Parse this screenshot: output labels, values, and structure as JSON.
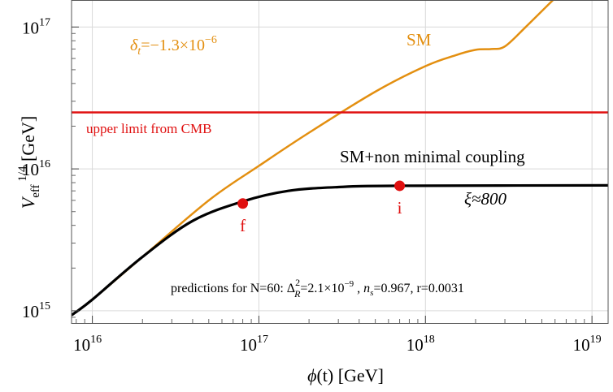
{
  "chart_data": {
    "type": "line",
    "xlabel": "ϕ(t) [GeV]",
    "ylabel": "V_eff^1/4 [GeV]",
    "xscale": "log",
    "yscale": "log",
    "xlim": [
      7500000000000000.0,
      1.25e+19
    ],
    "ylim": [
      820000000000000.0,
      1.55e+17
    ],
    "grid": true,
    "x_ticks": [
      {
        "value": 1e+16,
        "label": "10",
        "exp": "16"
      },
      {
        "value": 1e+17,
        "label": "10",
        "exp": "17"
      },
      {
        "value": 1e+18,
        "label": "10",
        "exp": "18"
      },
      {
        "value": 1e+19,
        "label": "10",
        "exp": "19"
      }
    ],
    "y_ticks": [
      {
        "value": 1000000000000000.0,
        "label": "10",
        "exp": "15"
      },
      {
        "value": 1e+16,
        "label": "10",
        "exp": "16"
      },
      {
        "value": 1e+17,
        "label": "10",
        "exp": "17"
      }
    ],
    "series": [
      {
        "name": "SM",
        "color": "#e38f10",
        "x": [
          7500000000000000.0,
          1e+16,
          2e+16,
          5e+16,
          1e+17,
          2e+17,
          5e+17,
          1e+18,
          1.5e+18,
          2e+18,
          2.5e+18,
          3e+18,
          4e+18,
          6e+18
        ],
        "y": [
          930000000000000.0,
          1200000000000000.0,
          2400000000000000.0,
          6000000000000000.0,
          1.05e+16,
          1.8e+16,
          3.5e+16,
          5.3e+16,
          6.3e+16,
          6.9e+16,
          7e+16,
          7.3e+16,
          1e+17,
          1.6e+17
        ]
      },
      {
        "name": "SM+non minimal coupling",
        "color": "#000000",
        "x": [
          7500000000000000.0,
          1e+16,
          2e+16,
          4e+16,
          8e+16,
          1.5e+17,
          3e+17,
          7e+17,
          1.25e+19
        ],
        "y": [
          930000000000000.0,
          1200000000000000.0,
          2400000000000000.0,
          4300000000000000.0,
          5900000000000000.0,
          7000000000000000.0,
          7450000000000000.0,
          7600000000000000.0,
          7650000000000000.0
        ]
      },
      {
        "name": "upper limit from CMB",
        "color": "#e01010",
        "x": [
          7500000000000000.0,
          1.25e+19
        ],
        "y": [
          2.5e+16,
          2.5e+16
        ]
      }
    ],
    "points": [
      {
        "label": "f",
        "x": 8e+16,
        "y": 5700000000000000.0,
        "color": "#e01010"
      },
      {
        "label": "i",
        "x": 7e+17,
        "y": 7600000000000000.0,
        "color": "#e01010"
      }
    ],
    "annotations": {
      "delta_t": "δt=−1.3×10⁻⁶",
      "sm_label": "SM",
      "upper_limit": "upper limit from CMB",
      "nonminimal": "SM+non minimal coupling",
      "xi": "ξ≈800",
      "predictions": "predictions for N=60: ΔR²=2.1×10⁻⁹ , ns=0.967, r=0.0031"
    }
  }
}
